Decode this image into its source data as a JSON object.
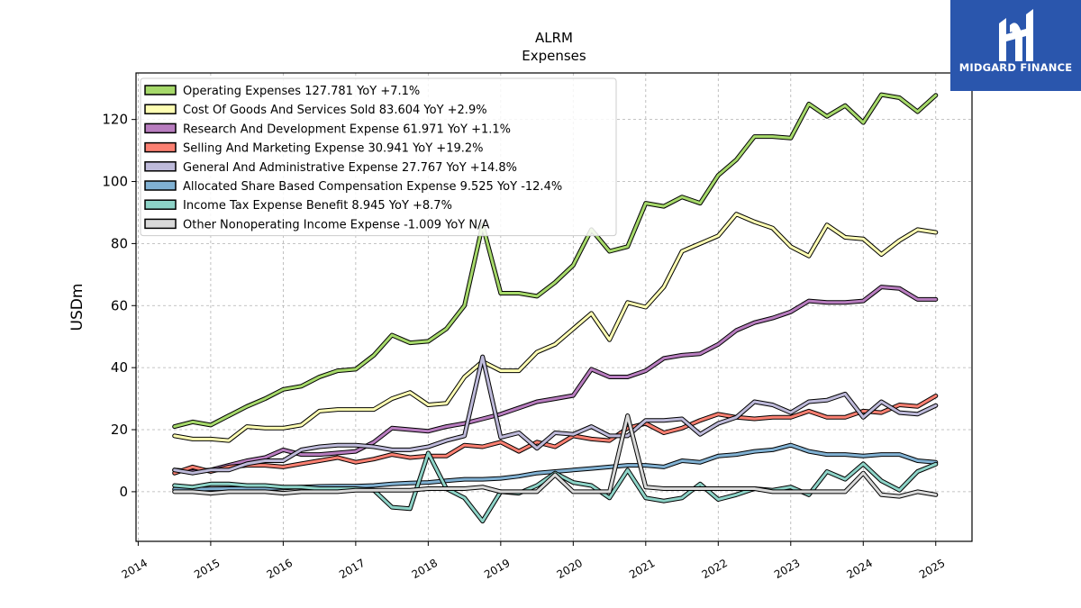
{
  "brand": {
    "name": "MIDGARD FINANCE",
    "bg_color": "#2a56ad"
  },
  "chart_data": {
    "type": "line",
    "title": "ALRM",
    "subtitle": "Expenses",
    "ylabel": "USDm",
    "xlabel": "",
    "xlim": [
      2013.97,
      2025.5
    ],
    "ylim": [
      -16,
      135
    ],
    "y_ticks": [
      0,
      20,
      40,
      60,
      80,
      100,
      120
    ],
    "x_ticks": [
      "2014",
      "2015",
      "2016",
      "2017",
      "2018",
      "2019",
      "2020",
      "2021",
      "2022",
      "2023",
      "2024",
      "2025"
    ],
    "grid": true,
    "legend_position": "top-left",
    "x": [
      2014.5,
      2014.75,
      2015.0,
      2015.25,
      2015.5,
      2015.75,
      2016.0,
      2016.25,
      2016.5,
      2016.75,
      2017.0,
      2017.25,
      2017.5,
      2017.75,
      2018.0,
      2018.25,
      2018.5,
      2018.75,
      2019.0,
      2019.25,
      2019.5,
      2019.75,
      2020.0,
      2020.25,
      2020.5,
      2020.75,
      2021.0,
      2021.25,
      2021.5,
      2021.75,
      2022.0,
      2022.25,
      2022.5,
      2022.75,
      2023.0,
      2023.25,
      2023.5,
      2023.75,
      2024.0,
      2024.25,
      2024.5,
      2024.75,
      2025.0
    ],
    "series": [
      {
        "name": "Operating Expenses",
        "legend": "Operating Expenses  127.781 YoY +7.1%",
        "color": "#a6d96a",
        "values": [
          21,
          22.5,
          21.5,
          24.5,
          27.5,
          30,
          33,
          34,
          37,
          39,
          39.5,
          44,
          50.5,
          48,
          48.5,
          52.5,
          60,
          86,
          64,
          64,
          63,
          67.5,
          73,
          84.5,
          77.5,
          79,
          93,
          92,
          95,
          93,
          102,
          107,
          114.5,
          114.5,
          114,
          125,
          121,
          124.5,
          119,
          128,
          127,
          122.5,
          127.8
        ]
      },
      {
        "name": "Cost Of Goods And Services Sold",
        "legend": "Cost Of Goods And Services Sold  83.604 YoY +2.9%",
        "color": "#ffffb3",
        "values": [
          18,
          17,
          17,
          16.5,
          21,
          20.5,
          20.5,
          21.5,
          26,
          26.5,
          26.5,
          26.5,
          30,
          32,
          28,
          28.5,
          37,
          42,
          39,
          39,
          45,
          47.5,
          52.5,
          57.5,
          49,
          61,
          59.5,
          66,
          77.5,
          80,
          82.5,
          89.5,
          87,
          85,
          79,
          76,
          86,
          82,
          81.5,
          76.5,
          81,
          84.5,
          83.6
        ]
      },
      {
        "name": "Research And Development Expense",
        "legend": "Research And Development Expense  61.971 YoY +1.1%",
        "color": "#b87dbf",
        "values": [
          7,
          6.5,
          7,
          8.5,
          10,
          11,
          13.5,
          12,
          12,
          12.5,
          13,
          16,
          20.5,
          20,
          19.5,
          21,
          22,
          23.5,
          25,
          27,
          29,
          30,
          31,
          39.5,
          37,
          37,
          39,
          43,
          44,
          44.5,
          47.5,
          52,
          54.5,
          56,
          58,
          61.5,
          61,
          61,
          61.5,
          66,
          65.5,
          62,
          62
        ]
      },
      {
        "name": "Selling And Marketing Expense",
        "legend": "Selling And Marketing Expense  30.941 YoY +19.2%",
        "color": "#fb8072",
        "values": [
          6,
          8,
          6.5,
          8,
          8.5,
          8.5,
          8,
          9,
          10,
          11,
          9.5,
          10.5,
          12,
          11,
          11.5,
          11.5,
          15,
          14.5,
          16,
          13,
          16,
          14.5,
          18,
          17,
          16.5,
          20.5,
          22,
          19,
          20.5,
          23,
          25,
          24,
          23.5,
          24,
          24,
          26,
          24,
          24,
          26,
          25.5,
          28,
          27.5,
          30.9
        ]
      },
      {
        "name": "General And Administrative Expense",
        "legend": "General And Administrative Expense  27.767 YoY +14.8%",
        "color": "#bebada",
        "values": [
          7,
          6,
          7,
          7,
          9,
          10,
          10,
          13.5,
          14.5,
          15,
          15,
          14.5,
          13.5,
          13.5,
          14.5,
          16.5,
          18,
          43.5,
          17.5,
          19,
          14,
          19,
          18.5,
          21,
          18,
          18,
          23,
          23,
          23.5,
          18.5,
          22,
          24,
          29,
          28,
          25.5,
          29,
          29.5,
          31.5,
          24,
          29,
          25.5,
          25,
          27.8
        ]
      },
      {
        "name": "Allocated Share Based Compensation Expense",
        "legend": "Allocated Share Based Compensation Expense  9.525 YoY -12.4%",
        "color": "#80b1d3",
        "values": [
          0.8,
          0.8,
          0.9,
          1,
          1,
          1,
          1.2,
          1.5,
          1.7,
          1.8,
          1.8,
          2,
          2.5,
          2.8,
          3,
          3.5,
          4,
          4,
          4.3,
          5,
          6,
          6.5,
          7,
          7.5,
          8,
          8.5,
          8.5,
          8,
          10,
          9.5,
          11.5,
          12,
          13,
          13.5,
          15,
          13,
          12,
          12,
          11.5,
          12,
          12,
          10,
          9.5
        ]
      },
      {
        "name": "Income Tax Expense Benefit",
        "legend": "Income Tax Expense Benefit  8.945 YoY +8.7%",
        "color": "#8dd3c7",
        "values": [
          2,
          1.5,
          2.5,
          2.5,
          2,
          2,
          1.5,
          1.5,
          1,
          1,
          1,
          0.5,
          -5,
          -5.5,
          12.5,
          1,
          -2,
          -9.5,
          0,
          -0.5,
          2,
          6,
          3,
          2,
          -2,
          7,
          -2,
          -3,
          -2,
          2.5,
          -2.5,
          -1,
          1,
          0.5,
          1.5,
          -1,
          6.5,
          4,
          9,
          3.5,
          0.5,
          6.5,
          8.9
        ]
      },
      {
        "name": "Other Nonoperating Income Expense",
        "legend": "Other Nonoperating Income Expense  -1.009 YoY N/A",
        "color": "#d9d9d9",
        "values": [
          0,
          0,
          -0.5,
          0,
          0,
          0,
          -0.5,
          0,
          0,
          0,
          0.5,
          0.5,
          0.5,
          0.5,
          1,
          1,
          1,
          1.5,
          0,
          0,
          0,
          5.5,
          0,
          0,
          0,
          24.5,
          1.5,
          1,
          1,
          1,
          1,
          1,
          1,
          0,
          0,
          0,
          0,
          0,
          6,
          -1,
          -1.5,
          0,
          -1
        ]
      }
    ]
  }
}
